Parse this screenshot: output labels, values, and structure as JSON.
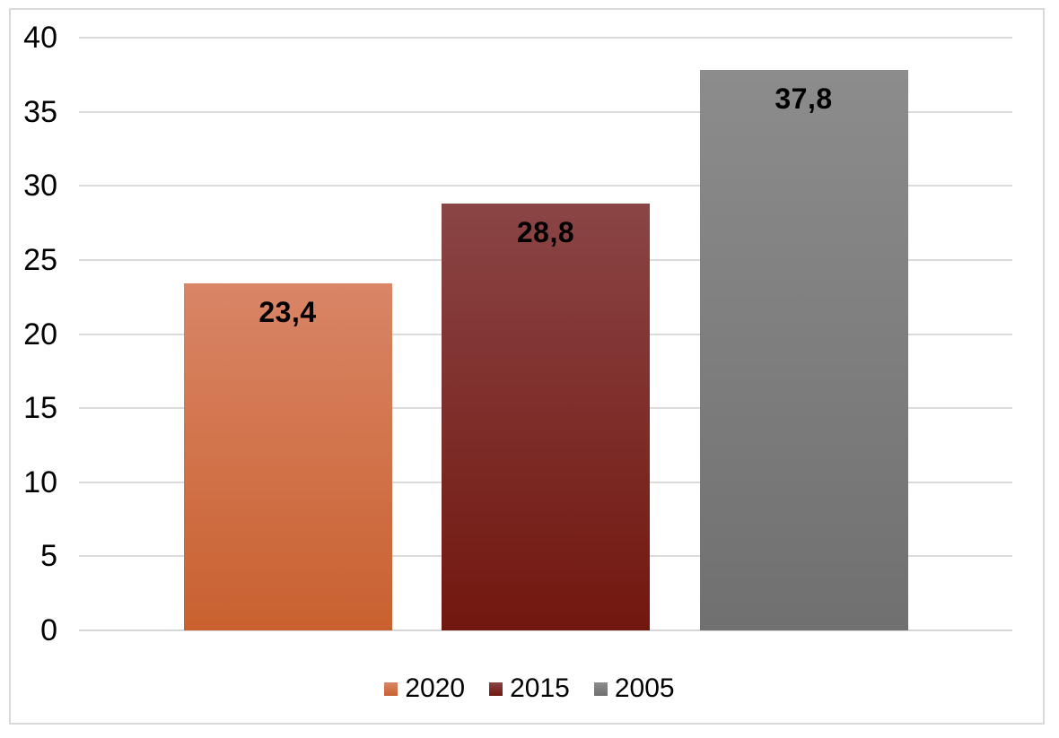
{
  "chart_data": {
    "type": "bar",
    "title": "",
    "xlabel": "",
    "ylabel": "",
    "categories": [
      "2020",
      "2015",
      "2005"
    ],
    "values": [
      23.4,
      28.8,
      37.8
    ],
    "series": [
      {
        "name": "2020",
        "value": 23.4,
        "label": "23,4",
        "color_top": "#D98566",
        "color_bottom": "#C9612F"
      },
      {
        "name": "2015",
        "value": 28.8,
        "label": "28,8",
        "color_top": "#8A4545",
        "color_bottom": "#72170F"
      },
      {
        "name": "2005",
        "value": 37.8,
        "label": "37,8",
        "color_top": "#8C8C8C",
        "color_bottom": "#707070"
      }
    ],
    "ylim": [
      0,
      40
    ],
    "yticks": [
      0,
      5,
      10,
      15,
      20,
      25,
      30,
      35,
      40
    ],
    "ytick_labels": [
      "0",
      "5",
      "10",
      "15",
      "20",
      "25",
      "30",
      "35",
      "40"
    ],
    "grid": true,
    "legend_position": "bottom"
  },
  "colors": {
    "background": "#FFFFFF",
    "frame_border": "#D9D9D9",
    "gridline": "#DBDBDB",
    "axis_line": "#D6D6D6",
    "tick_text": "#000000",
    "data_label_text": "#000000",
    "legend_text": "#000000"
  }
}
